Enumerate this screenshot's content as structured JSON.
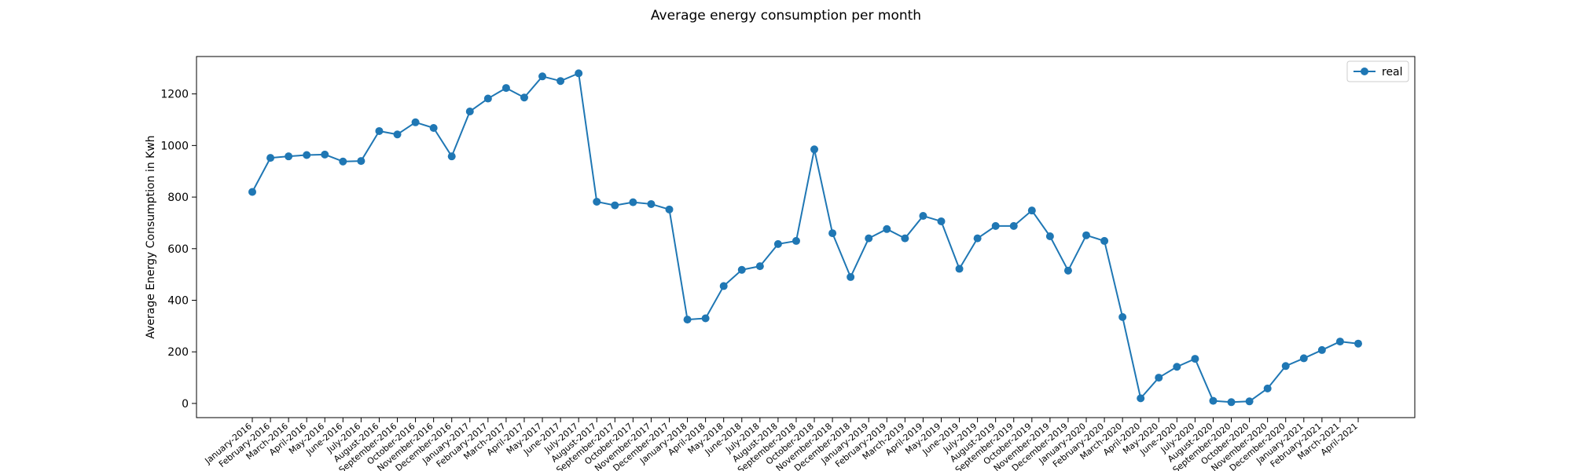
{
  "chart_data": {
    "type": "line",
    "title": "Average energy consumption per month",
    "xlabel": "",
    "ylabel": "Average Energy Consumption in Kwh",
    "ylim": [
      -55,
      1345
    ],
    "yticks": [
      0,
      200,
      400,
      600,
      800,
      1000,
      1200
    ],
    "grid": false,
    "legend_position": "top-right",
    "color": "#1f77b4",
    "categories": [
      "January-2016",
      "February-2016",
      "March-2016",
      "April-2016",
      "May-2016",
      "June-2016",
      "July-2016",
      "August-2016",
      "September-2016",
      "October-2016",
      "November-2016",
      "December-2016",
      "January-2017",
      "February-2017",
      "March-2017",
      "April-2017",
      "May-2017",
      "June-2017",
      "July-2017",
      "August-2017",
      "September-2017",
      "October-2017",
      "November-2017",
      "December-2017",
      "January-2018",
      "April-2018",
      "May-2018",
      "June-2018",
      "July-2018",
      "August-2018",
      "September-2018",
      "October-2018",
      "November-2018",
      "December-2018",
      "January-2019",
      "February-2019",
      "March-2019",
      "April-2019",
      "May-2019",
      "June-2019",
      "July-2019",
      "August-2019",
      "September-2019",
      "October-2019",
      "November-2019",
      "December-2019",
      "January-2020",
      "February-2020",
      "March-2020",
      "April-2020",
      "May-2020",
      "June-2020",
      "July-2020",
      "August-2020",
      "September-2020",
      "October-2020",
      "November-2020",
      "December-2020",
      "January-2021",
      "February-2021",
      "March-2021",
      "April-2021"
    ],
    "series": [
      {
        "name": "real",
        "values": [
          820,
          952,
          958,
          963,
          965,
          938,
          940,
          1056,
          1043,
          1090,
          1068,
          958,
          1132,
          1182,
          1223,
          1186,
          1268,
          1250,
          1280,
          782,
          768,
          780,
          773,
          752,
          325,
          330,
          455,
          518,
          532,
          618,
          630,
          985,
          660,
          490,
          640,
          676,
          640,
          727,
          706,
          522,
          640,
          688,
          688,
          748,
          648,
          515,
          652,
          630,
          335,
          20,
          100,
          142,
          173,
          10,
          5,
          8,
          58,
          145,
          175,
          207,
          240,
          232
        ]
      }
    ]
  }
}
